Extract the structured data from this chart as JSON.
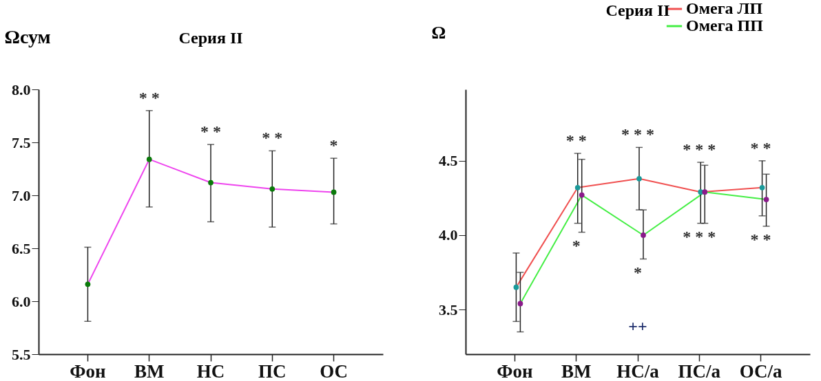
{
  "chart_data": [
    {
      "type": "line",
      "title": "Серия II",
      "ylabel": "Ωсум",
      "categories": [
        "Фон",
        "ВМ",
        "НС",
        "ПС",
        "ОС"
      ],
      "series": [
        {
          "color": "#ee44ee",
          "values": [
            6.16,
            7.34,
            7.12,
            7.06,
            7.03
          ],
          "errors": [
            [
              5.81,
              6.51
            ],
            [
              6.89,
              7.8
            ],
            [
              6.75,
              7.48
            ],
            [
              6.7,
              7.42
            ],
            [
              6.73,
              7.35
            ]
          ]
        }
      ],
      "ylim": [
        5.5,
        8.0
      ],
      "yticks": [
        {
          "value": 5.5,
          "label": "5.5"
        },
        {
          "value": 6.0,
          "label": "6.0"
        },
        {
          "value": 6.5,
          "label": "6.5"
        },
        {
          "value": 7.0,
          "label": "7.0"
        },
        {
          "value": 7.5,
          "label": "7.5"
        },
        {
          "value": 8.0,
          "label": "8.0"
        }
      ],
      "marker": "circle",
      "line_style": "solid",
      "annotations": [
        {
          "text": "* *",
          "x": "ВМ",
          "y": 7.8
        },
        {
          "text": "* *",
          "x": "НС",
          "y": 7.48
        },
        {
          "text": "* *",
          "x": "ПС",
          "y": 7.42
        },
        {
          "text": "*",
          "x": "ОС",
          "y": 7.35
        }
      ]
    },
    {
      "type": "line",
      "title": "Серия II",
      "ylabel": "Ω",
      "categories": [
        "Фон",
        "ВМ",
        "НС/а",
        "ПС/а",
        "ОС/а"
      ],
      "series": [
        {
          "name": "Омега ЛП",
          "color": "#f05050",
          "values": [
            3.65,
            4.32,
            4.38,
            4.29,
            4.32
          ],
          "errors": [
            [
              3.42,
              3.88
            ],
            [
              4.08,
              4.55
            ],
            [
              4.17,
              4.59
            ],
            [
              4.08,
              4.49
            ],
            [
              4.13,
              4.5
            ]
          ]
        },
        {
          "name": "Омега ПП",
          "color": "#44ee44",
          "values": [
            3.54,
            4.27,
            4.0,
            4.29,
            4.24
          ],
          "errors": [
            [
              3.35,
              3.75
            ],
            [
              4.02,
              4.51
            ],
            [
              3.84,
              4.17
            ],
            [
              4.08,
              4.47
            ],
            [
              4.06,
              4.41
            ]
          ]
        }
      ],
      "ylim": [
        3.2,
        4.98
      ],
      "yticks": [
        {
          "value": 3.5,
          "label": "3.5"
        },
        {
          "value": 4.0,
          "label": "4.0"
        },
        {
          "value": 4.5,
          "label": "4.5"
        }
      ],
      "marker": "circle",
      "line_style": "solid",
      "legend": "top right",
      "annotations": [
        {
          "text": "* *",
          "x": "ВМ",
          "y": 4.55
        },
        {
          "text": "* * *",
          "x": "НС/а",
          "y": 4.59
        },
        {
          "text": "* * *",
          "x": "ПС/а",
          "y": 4.49
        },
        {
          "text": "* *",
          "x": "ОС/а",
          "y": 4.5
        },
        {
          "text": "*",
          "x": "ВМ",
          "y": 4.02
        },
        {
          "text": "*",
          "x": "НС/а",
          "y": 3.84
        },
        {
          "text": "* * *",
          "x": "ПС/а",
          "y": 4.08
        },
        {
          "text": "* *",
          "x": "ОС/а",
          "y": 4.06
        },
        "++"
      ]
    }
  ]
}
